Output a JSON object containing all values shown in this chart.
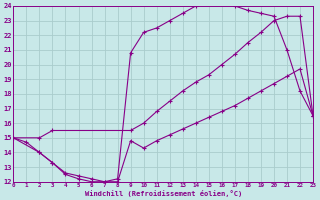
{
  "bg_color": "#c8e8e8",
  "grid_color": "#b8d8d8",
  "line_color": "#880088",
  "xmin": 0,
  "xmax": 23,
  "ymin": 12,
  "ymax": 24,
  "curve_upper_x": [
    0,
    2,
    3,
    4,
    5,
    6,
    7,
    8,
    9,
    10,
    11,
    12,
    13,
    14,
    15,
    16,
    17,
    18,
    19,
    20,
    21,
    22,
    23
  ],
  "curve_upper_y": [
    15,
    14.0,
    13.3,
    12.5,
    12.2,
    12.0,
    12.0,
    12.2,
    20.8,
    22.2,
    22.5,
    23.0,
    23.5,
    24.0,
    24.2,
    24.3,
    24.0,
    23.7,
    23.5,
    23.3,
    21.0,
    18.2,
    16.5
  ],
  "curve_mid_x": [
    0,
    2,
    3,
    9,
    10,
    11,
    12,
    13,
    14,
    15,
    16,
    17,
    18,
    19,
    20,
    21,
    22,
    23
  ],
  "curve_mid_y": [
    15,
    15.0,
    15.5,
    15.5,
    16.0,
    16.8,
    17.5,
    18.2,
    18.8,
    19.3,
    20.0,
    20.7,
    21.5,
    22.2,
    23.0,
    23.3,
    23.3,
    16.5
  ],
  "curve_lower_x": [
    0,
    1,
    2,
    3,
    4,
    5,
    6,
    7,
    8,
    9,
    10,
    11,
    12,
    13,
    14,
    15,
    16,
    17,
    18,
    19,
    20,
    21,
    22,
    23
  ],
  "curve_lower_y": [
    15,
    14.7,
    14.0,
    13.3,
    12.6,
    12.4,
    12.2,
    12.0,
    12.0,
    14.8,
    14.3,
    14.8,
    15.2,
    15.6,
    16.0,
    16.4,
    16.8,
    17.2,
    17.7,
    18.2,
    18.7,
    19.2,
    19.7,
    16.5
  ],
  "yticks": [
    12,
    13,
    14,
    15,
    16,
    17,
    18,
    19,
    20,
    21,
    22,
    23,
    24
  ],
  "xticks": [
    0,
    1,
    2,
    3,
    4,
    5,
    6,
    7,
    8,
    9,
    10,
    11,
    12,
    13,
    14,
    15,
    16,
    17,
    18,
    19,
    20,
    21,
    22,
    23
  ],
  "xlabel": "Windchill (Refroidissement éolien,°C)"
}
